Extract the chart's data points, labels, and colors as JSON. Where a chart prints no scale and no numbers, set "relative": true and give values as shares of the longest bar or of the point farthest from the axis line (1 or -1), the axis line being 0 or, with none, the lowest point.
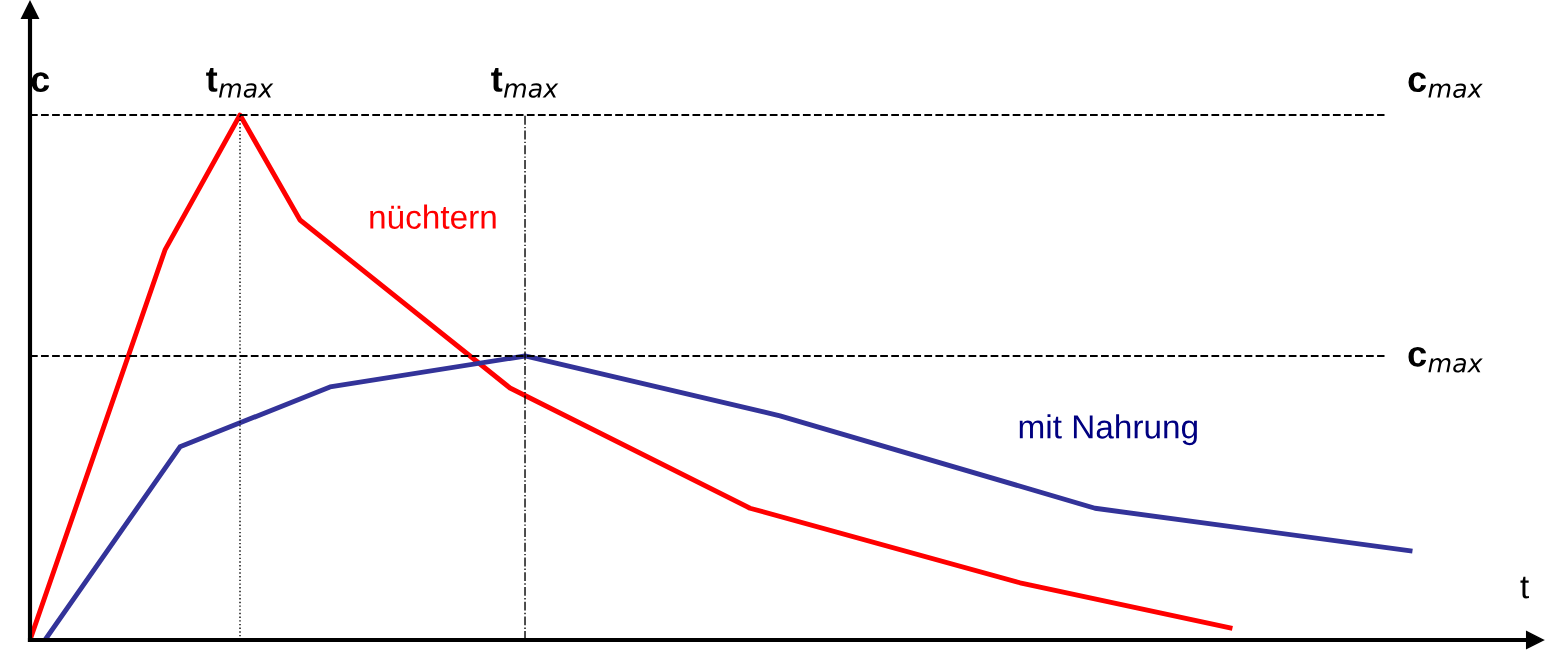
{
  "chart_data": {
    "type": "line",
    "relative": true,
    "xlabel": "t",
    "ylabel": "c",
    "grid": false,
    "legend": false,
    "marker": "none",
    "line_style": "solid",
    "categories": [
      null,
      null,
      null,
      null,
      null,
      null,
      null,
      null,
      null,
      null,
      null,
      null,
      null,
      null,
      null,
      null,
      null,
      null,
      null,
      null,
      null,
      null,
      null,
      null,
      null,
      null,
      null,
      null,
      null,
      null,
      null,
      null,
      null,
      null,
      null,
      null,
      null,
      null,
      null,
      null,
      null,
      null,
      null,
      null,
      null,
      null,
      null,
      null,
      null,
      null,
      null,
      null,
      null,
      null,
      null,
      null,
      null,
      null,
      null,
      null,
      null,
      null,
      null,
      null,
      null,
      null,
      null,
      null,
      null,
      null,
      null,
      null,
      null,
      null,
      null,
      null,
      null,
      null,
      null,
      null,
      null,
      null,
      null,
      null,
      null,
      null,
      null,
      null,
      null,
      null,
      null,
      null,
      null,
      null,
      null,
      null,
      null,
      null,
      null,
      null,
      null
    ],
    "series": [
      {
        "name": "nüchtern",
        "color": "#ff0000",
        "values": [
          0,
          null,
          null,
          null,
          null,
          null,
          null,
          null,
          null,
          0.743,
          null,
          null,
          null,
          null,
          1,
          null,
          null,
          null,
          0.8,
          null,
          null,
          null,
          null,
          null,
          null,
          null,
          null,
          null,
          null,
          null,
          null,
          null,
          0.48,
          null,
          null,
          null,
          null,
          null,
          null,
          null,
          null,
          null,
          null,
          null,
          null,
          null,
          null,
          null,
          0.251,
          null,
          null,
          null,
          null,
          null,
          null,
          null,
          null,
          null,
          null,
          null,
          null,
          null,
          null,
          null,
          null,
          null,
          0.109,
          null,
          null,
          null,
          null,
          null,
          null,
          null,
          null,
          null,
          null,
          null,
          null,
          null,
          0.023,
          null,
          null,
          null,
          null,
          null,
          null,
          null,
          null,
          null,
          null,
          null,
          null,
          null,
          null,
          null,
          null,
          null,
          null,
          null,
          null
        ]
      },
      {
        "name": "mit Nahrung",
        "color": "#333399",
        "values": [
          null,
          0,
          null,
          null,
          null,
          null,
          null,
          null,
          null,
          null,
          0.368,
          null,
          null,
          null,
          null,
          null,
          null,
          null,
          null,
          null,
          0.482,
          null,
          null,
          null,
          null,
          null,
          null,
          null,
          null,
          null,
          null,
          null,
          null,
          0.541,
          null,
          null,
          null,
          null,
          null,
          null,
          null,
          null,
          null,
          null,
          null,
          null,
          null,
          null,
          null,
          null,
          0.427,
          null,
          null,
          null,
          null,
          null,
          null,
          null,
          null,
          null,
          null,
          null,
          null,
          null,
          null,
          null,
          null,
          null,
          null,
          null,
          null,
          0.251,
          null,
          null,
          null,
          null,
          null,
          null,
          null,
          null,
          null,
          null,
          null,
          null,
          null,
          null,
          null,
          null,
          null,
          null,
          null,
          null,
          0.17,
          null,
          null,
          null,
          null,
          null,
          null,
          null,
          null
        ]
      }
    ],
    "ref_lines": [
      {
        "axis": "y",
        "value": 1,
        "label": "c$_{max}$",
        "line_style": "dashed",
        "color": "#000000"
      },
      {
        "axis": "y",
        "value": 0.541,
        "label": "c$_{max}$",
        "line_style": "dashed",
        "color": "#000000"
      }
    ],
    "annotations": [
      "t$_{max}$",
      "t$_{max}$"
    ]
  }
}
